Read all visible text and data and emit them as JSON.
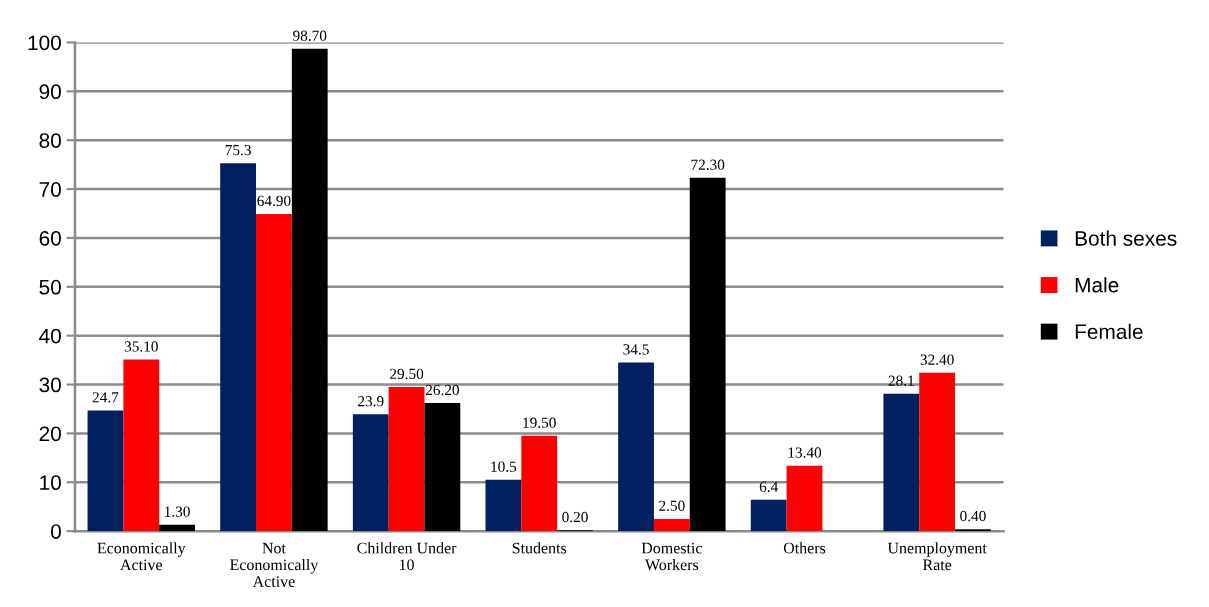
{
  "chart_data": {
    "type": "bar",
    "categories": [
      "Economically\nActive",
      "Not\nEconomically\nActive",
      "Children Under\n10",
      "Students",
      "Domestic\nWorkers",
      "Others",
      "Unemployment\nRate"
    ],
    "series": [
      {
        "name": "Both sexes",
        "color": "#002060",
        "values": [
          24.7,
          75.3,
          23.9,
          10.5,
          34.5,
          6.4,
          28.1
        ],
        "value_labels": [
          "24.7",
          "75.3",
          "23.9",
          "10.5",
          "34.5",
          "6.4",
          "28.1"
        ]
      },
      {
        "name": "Male",
        "color": "#ff0000",
        "values": [
          35.1,
          64.9,
          29.5,
          19.5,
          2.5,
          13.4,
          32.4
        ],
        "value_labels": [
          "35.10",
          "64.90",
          "29.50",
          "19.50",
          "2.50",
          "13.40",
          "32.40"
        ]
      },
      {
        "name": "Female",
        "color": "#000000",
        "values": [
          1.3,
          98.7,
          26.2,
          0.2,
          72.3,
          null,
          0.4
        ],
        "value_labels": [
          "1.30",
          "98.70",
          "26.20",
          "0.20",
          "72.30",
          null,
          "0.40"
        ]
      }
    ],
    "ylim": [
      0,
      100
    ],
    "yticks": [
      0,
      10,
      20,
      30,
      40,
      50,
      60,
      70,
      80,
      90,
      100
    ],
    "grid": "y",
    "legend": "right"
  }
}
